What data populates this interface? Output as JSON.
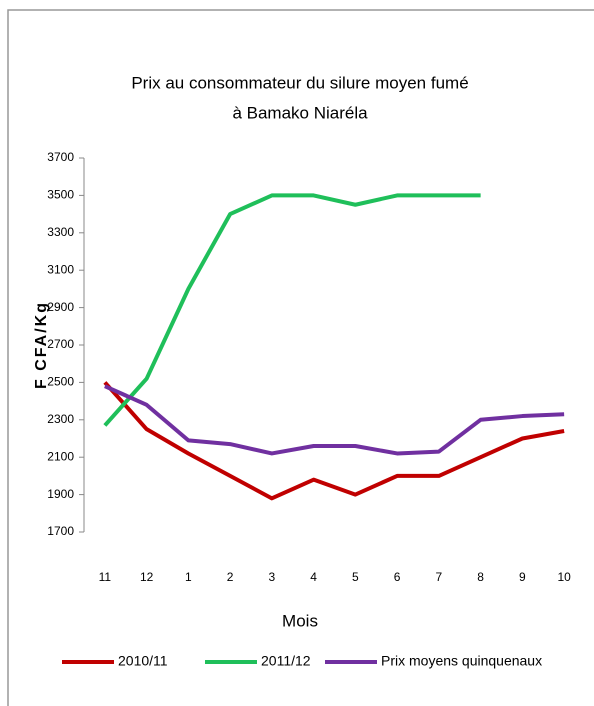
{
  "chart_data": {
    "type": "line",
    "title": [
      "Prix au consommateur du silure  moyen fumé",
      "à Bamako Niaréla"
    ],
    "y_label": "F CFA/Kg",
    "x_label": "Mois",
    "categories": [
      "11",
      "12",
      "1",
      "2",
      "3",
      "4",
      "5",
      "6",
      "7",
      "8",
      "9",
      "10"
    ],
    "series": [
      {
        "name": "2010/11",
        "color": "#c00000",
        "values": [
          2500,
          2250,
          2120,
          2000,
          1880,
          1980,
          1900,
          2000,
          2000,
          2100,
          2200,
          2240
        ]
      },
      {
        "name": "2011/12",
        "color": "#1fbf5a",
        "values": [
          2270,
          2520,
          3000,
          3400,
          3500,
          3500,
          3450,
          3500,
          3500,
          3500,
          null,
          null
        ]
      },
      {
        "name": "Prix moyens quinquenaux",
        "color": "#7030a0",
        "values": [
          2480,
          2380,
          2190,
          2170,
          2120,
          2160,
          2160,
          2120,
          2130,
          2300,
          2320,
          2330
        ]
      }
    ],
    "ylim": [
      1700,
      3700
    ],
    "yticks": [
      1700,
      1900,
      2100,
      2300,
      2500,
      2700,
      2900,
      3100,
      3300,
      3500,
      3700
    ],
    "legend": "bottom"
  }
}
